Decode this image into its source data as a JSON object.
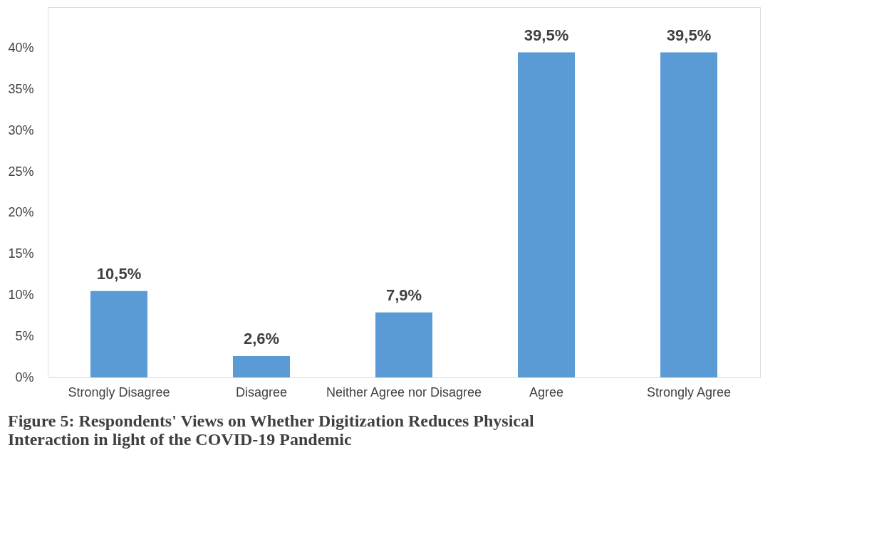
{
  "chart_data": {
    "type": "bar",
    "title": "Figure 5: Respondents' Views on Whether Digitization Reduces Physical Interaction in light of the COVID-19 Pandemic",
    "categories": [
      "Strongly Disagree",
      "Disagree",
      "Neither Agree nor Disagree",
      "Agree",
      "Strongly Agree"
    ],
    "values": [
      10.5,
      2.6,
      7.9,
      39.5,
      39.5
    ],
    "value_labels": [
      "10,5%",
      "2,6%",
      "7,9%",
      "39,5%",
      "39,5%"
    ],
    "color": "#5b9bd5",
    "ylim": [
      0,
      45
    ],
    "yticks": [
      {
        "value": 0,
        "label": "0%"
      },
      {
        "value": 5,
        "label": "5%"
      },
      {
        "value": 10,
        "label": "10%"
      },
      {
        "value": 15,
        "label": "15%"
      },
      {
        "value": 20,
        "label": "20%"
      },
      {
        "value": 25,
        "label": "25%"
      },
      {
        "value": 30,
        "label": "30%"
      },
      {
        "value": 35,
        "label": "35%"
      },
      {
        "value": 40,
        "label": "40%"
      }
    ],
    "grid": false
  }
}
